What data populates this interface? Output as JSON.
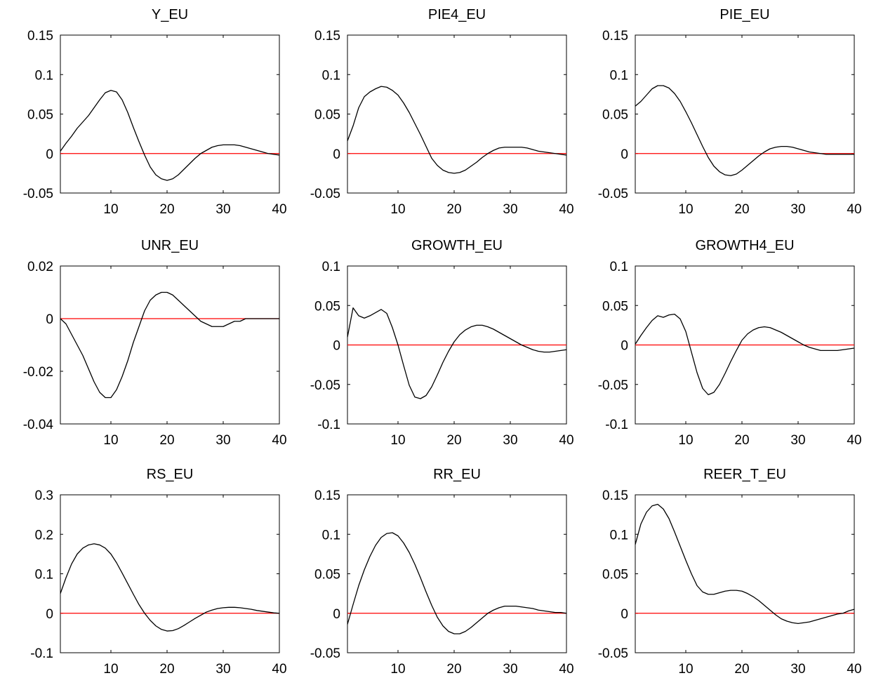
{
  "chart_data": [
    {
      "type": "line",
      "title": "Y_EU",
      "xlim": [
        1,
        40
      ],
      "ylim": [
        -0.05,
        0.15
      ],
      "xticks": [
        10,
        20,
        30,
        40
      ],
      "yticks": [
        -0.05,
        0,
        0.05,
        0.1,
        0.15
      ],
      "ytick_labels": [
        "-0.05",
        "0",
        "0.05",
        "0.1",
        "0.15"
      ],
      "zero_line": true,
      "x": [
        1,
        2,
        3,
        4,
        5,
        6,
        7,
        8,
        9,
        10,
        11,
        12,
        13,
        14,
        15,
        16,
        17,
        18,
        19,
        20,
        21,
        22,
        23,
        24,
        25,
        26,
        27,
        28,
        29,
        30,
        31,
        32,
        33,
        34,
        35,
        36,
        37,
        38,
        39,
        40
      ],
      "series": [
        {
          "values": [
            0.003,
            0.013,
            0.022,
            0.032,
            0.04,
            0.048,
            0.058,
            0.068,
            0.077,
            0.08,
            0.078,
            0.068,
            0.052,
            0.033,
            0.015,
            -0.002,
            -0.017,
            -0.027,
            -0.032,
            -0.034,
            -0.032,
            -0.027,
            -0.02,
            -0.013,
            -0.006,
            0.0,
            0.004,
            0.008,
            0.01,
            0.011,
            0.011,
            0.011,
            0.01,
            0.008,
            0.006,
            0.004,
            0.002,
            0.0,
            -0.001,
            -0.002
          ]
        }
      ]
    },
    {
      "type": "line",
      "title": "PIE4_EU",
      "xlim": [
        1,
        40
      ],
      "ylim": [
        -0.05,
        0.15
      ],
      "xticks": [
        10,
        20,
        30,
        40
      ],
      "yticks": [
        -0.05,
        0,
        0.05,
        0.1,
        0.15
      ],
      "ytick_labels": [
        "-0.05",
        "0",
        "0.05",
        "0.1",
        "0.15"
      ],
      "zero_line": true,
      "x": [
        1,
        2,
        3,
        4,
        5,
        6,
        7,
        8,
        9,
        10,
        11,
        12,
        13,
        14,
        15,
        16,
        17,
        18,
        19,
        20,
        21,
        22,
        23,
        24,
        25,
        26,
        27,
        28,
        29,
        30,
        31,
        32,
        33,
        34,
        35,
        36,
        37,
        38,
        39,
        40
      ],
      "series": [
        {
          "values": [
            0.016,
            0.035,
            0.058,
            0.072,
            0.078,
            0.082,
            0.085,
            0.084,
            0.08,
            0.074,
            0.064,
            0.052,
            0.038,
            0.024,
            0.009,
            -0.006,
            -0.015,
            -0.021,
            -0.024,
            -0.025,
            -0.024,
            -0.021,
            -0.016,
            -0.011,
            -0.005,
            0.0,
            0.004,
            0.007,
            0.008,
            0.008,
            0.008,
            0.008,
            0.007,
            0.005,
            0.003,
            0.002,
            0.001,
            0.0,
            -0.001,
            -0.002
          ]
        }
      ]
    },
    {
      "type": "line",
      "title": "PIE_EU",
      "xlim": [
        1,
        40
      ],
      "ylim": [
        -0.05,
        0.15
      ],
      "xticks": [
        10,
        20,
        30,
        40
      ],
      "yticks": [
        -0.05,
        0,
        0.05,
        0.1,
        0.15
      ],
      "ytick_labels": [
        "-0.05",
        "0",
        "0.05",
        "0.1",
        "0.15"
      ],
      "zero_line": true,
      "x": [
        1,
        2,
        3,
        4,
        5,
        6,
        7,
        8,
        9,
        10,
        11,
        12,
        13,
        14,
        15,
        16,
        17,
        18,
        19,
        20,
        21,
        22,
        23,
        24,
        25,
        26,
        27,
        28,
        29,
        30,
        31,
        32,
        33,
        34,
        35,
        36,
        37,
        38,
        39,
        40
      ],
      "series": [
        {
          "values": [
            0.06,
            0.066,
            0.074,
            0.082,
            0.086,
            0.086,
            0.083,
            0.076,
            0.066,
            0.053,
            0.039,
            0.024,
            0.009,
            -0.005,
            -0.016,
            -0.023,
            -0.027,
            -0.028,
            -0.026,
            -0.021,
            -0.015,
            -0.009,
            -0.003,
            0.002,
            0.006,
            0.008,
            0.009,
            0.009,
            0.008,
            0.006,
            0.004,
            0.002,
            0.001,
            0.0,
            -0.001,
            -0.001,
            -0.001,
            -0.001,
            -0.001,
            -0.001
          ]
        }
      ]
    },
    {
      "type": "line",
      "title": "UNR_EU",
      "xlim": [
        1,
        40
      ],
      "ylim": [
        -0.04,
        0.02
      ],
      "xticks": [
        10,
        20,
        30,
        40
      ],
      "yticks": [
        -0.04,
        -0.02,
        0,
        0.02
      ],
      "ytick_labels": [
        "-0.04",
        "-0.02",
        "0",
        "0.02"
      ],
      "zero_line": true,
      "x": [
        1,
        2,
        3,
        4,
        5,
        6,
        7,
        8,
        9,
        10,
        11,
        12,
        13,
        14,
        15,
        16,
        17,
        18,
        19,
        20,
        21,
        22,
        23,
        24,
        25,
        26,
        27,
        28,
        29,
        30,
        31,
        32,
        33,
        34,
        35,
        36,
        37,
        38,
        39,
        40
      ],
      "series": [
        {
          "values": [
            0.0,
            -0.002,
            -0.006,
            -0.01,
            -0.014,
            -0.019,
            -0.024,
            -0.028,
            -0.03,
            -0.03,
            -0.027,
            -0.022,
            -0.016,
            -0.009,
            -0.003,
            0.003,
            0.007,
            0.009,
            0.01,
            0.01,
            0.009,
            0.007,
            0.005,
            0.003,
            0.001,
            -0.001,
            -0.002,
            -0.003,
            -0.003,
            -0.003,
            -0.002,
            -0.001,
            -0.001,
            0.0,
            0.0,
            0.0,
            0.0,
            0.0,
            0.0,
            0.0
          ]
        }
      ]
    },
    {
      "type": "line",
      "title": "GROWTH_EU",
      "xlim": [
        1,
        40
      ],
      "ylim": [
        -0.1,
        0.1
      ],
      "xticks": [
        10,
        20,
        30,
        40
      ],
      "yticks": [
        -0.1,
        -0.05,
        0,
        0.05,
        0.1
      ],
      "ytick_labels": [
        "-0.1",
        "-0.05",
        "0",
        "0.05",
        "0.1"
      ],
      "zero_line": true,
      "x": [
        1,
        2,
        3,
        4,
        5,
        6,
        7,
        8,
        9,
        10,
        11,
        12,
        13,
        14,
        15,
        16,
        17,
        18,
        19,
        20,
        21,
        22,
        23,
        24,
        25,
        26,
        27,
        28,
        29,
        30,
        31,
        32,
        33,
        34,
        35,
        36,
        37,
        38,
        39,
        40
      ],
      "series": [
        {
          "values": [
            0.01,
            0.047,
            0.037,
            0.034,
            0.037,
            0.041,
            0.045,
            0.04,
            0.022,
            0.0,
            -0.026,
            -0.051,
            -0.066,
            -0.068,
            -0.064,
            -0.053,
            -0.038,
            -0.022,
            -0.008,
            0.004,
            0.013,
            0.019,
            0.023,
            0.025,
            0.025,
            0.023,
            0.02,
            0.016,
            0.012,
            0.008,
            0.004,
            0.0,
            -0.003,
            -0.006,
            -0.008,
            -0.009,
            -0.009,
            -0.008,
            -0.007,
            -0.006
          ]
        }
      ]
    },
    {
      "type": "line",
      "title": "GROWTH4_EU",
      "xlim": [
        1,
        40
      ],
      "ylim": [
        -0.1,
        0.1
      ],
      "xticks": [
        10,
        20,
        30,
        40
      ],
      "yticks": [
        -0.1,
        -0.05,
        0,
        0.05,
        0.1
      ],
      "ytick_labels": [
        "-0.1",
        "-0.05",
        "0",
        "0.05",
        "0.1"
      ],
      "zero_line": true,
      "x": [
        1,
        2,
        3,
        4,
        5,
        6,
        7,
        8,
        9,
        10,
        11,
        12,
        13,
        14,
        15,
        16,
        17,
        18,
        19,
        20,
        21,
        22,
        23,
        24,
        25,
        26,
        27,
        28,
        29,
        30,
        31,
        32,
        33,
        34,
        35,
        36,
        37,
        38,
        39,
        40
      ],
      "series": [
        {
          "values": [
            0.001,
            0.012,
            0.022,
            0.031,
            0.037,
            0.035,
            0.038,
            0.039,
            0.033,
            0.017,
            -0.009,
            -0.035,
            -0.055,
            -0.063,
            -0.06,
            -0.05,
            -0.036,
            -0.021,
            -0.007,
            0.006,
            0.014,
            0.019,
            0.022,
            0.023,
            0.022,
            0.019,
            0.016,
            0.012,
            0.008,
            0.004,
            0.0,
            -0.003,
            -0.005,
            -0.007,
            -0.007,
            -0.007,
            -0.007,
            -0.006,
            -0.005,
            -0.004
          ]
        }
      ]
    },
    {
      "type": "line",
      "title": "RS_EU",
      "xlim": [
        1,
        40
      ],
      "ylim": [
        -0.1,
        0.3
      ],
      "xticks": [
        10,
        20,
        30,
        40
      ],
      "yticks": [
        -0.1,
        0,
        0.1,
        0.2,
        0.3
      ],
      "ytick_labels": [
        "-0.1",
        "0",
        "0.1",
        "0.2",
        "0.3"
      ],
      "zero_line": true,
      "x": [
        1,
        2,
        3,
        4,
        5,
        6,
        7,
        8,
        9,
        10,
        11,
        12,
        13,
        14,
        15,
        16,
        17,
        18,
        19,
        20,
        21,
        22,
        23,
        24,
        25,
        26,
        27,
        28,
        29,
        30,
        31,
        32,
        33,
        34,
        35,
        36,
        37,
        38,
        39,
        40
      ],
      "series": [
        {
          "values": [
            0.05,
            0.09,
            0.125,
            0.15,
            0.165,
            0.173,
            0.176,
            0.173,
            0.165,
            0.15,
            0.128,
            0.102,
            0.075,
            0.048,
            0.022,
            0.0,
            -0.018,
            -0.032,
            -0.041,
            -0.045,
            -0.044,
            -0.039,
            -0.031,
            -0.022,
            -0.013,
            -0.005,
            0.003,
            0.008,
            0.012,
            0.014,
            0.015,
            0.015,
            0.014,
            0.012,
            0.01,
            0.007,
            0.005,
            0.003,
            0.001,
            0.0
          ]
        }
      ]
    },
    {
      "type": "line",
      "title": "RR_EU",
      "xlim": [
        1,
        40
      ],
      "ylim": [
        -0.05,
        0.15
      ],
      "xticks": [
        10,
        20,
        30,
        40
      ],
      "yticks": [
        -0.05,
        0,
        0.05,
        0.1,
        0.15
      ],
      "ytick_labels": [
        "-0.05",
        "0",
        "0.05",
        "0.1",
        "0.15"
      ],
      "zero_line": true,
      "x": [
        1,
        2,
        3,
        4,
        5,
        6,
        7,
        8,
        9,
        10,
        11,
        12,
        13,
        14,
        15,
        16,
        17,
        18,
        19,
        20,
        21,
        22,
        23,
        24,
        25,
        26,
        27,
        28,
        29,
        30,
        31,
        32,
        33,
        34,
        35,
        36,
        37,
        38,
        39,
        40
      ],
      "series": [
        {
          "values": [
            -0.014,
            0.011,
            0.035,
            0.055,
            0.072,
            0.086,
            0.096,
            0.101,
            0.102,
            0.098,
            0.089,
            0.077,
            0.062,
            0.045,
            0.027,
            0.01,
            -0.005,
            -0.016,
            -0.023,
            -0.026,
            -0.026,
            -0.023,
            -0.018,
            -0.012,
            -0.006,
            0.0,
            0.004,
            0.007,
            0.009,
            0.009,
            0.009,
            0.008,
            0.007,
            0.006,
            0.004,
            0.003,
            0.002,
            0.001,
            0.001,
            0.0
          ]
        }
      ]
    },
    {
      "type": "line",
      "title": "REER_T_EU",
      "xlim": [
        1,
        40
      ],
      "ylim": [
        -0.05,
        0.15
      ],
      "xticks": [
        10,
        20,
        30,
        40
      ],
      "yticks": [
        -0.05,
        0,
        0.05,
        0.1,
        0.15
      ],
      "ytick_labels": [
        "-0.05",
        "0",
        "0.05",
        "0.1",
        "0.15"
      ],
      "zero_line": true,
      "x": [
        1,
        2,
        3,
        4,
        5,
        6,
        7,
        8,
        9,
        10,
        11,
        12,
        13,
        14,
        15,
        16,
        17,
        18,
        19,
        20,
        21,
        22,
        23,
        24,
        25,
        26,
        27,
        28,
        29,
        30,
        31,
        32,
        33,
        34,
        35,
        36,
        37,
        38,
        39,
        40
      ],
      "series": [
        {
          "values": [
            0.087,
            0.113,
            0.128,
            0.136,
            0.138,
            0.132,
            0.12,
            0.103,
            0.085,
            0.067,
            0.05,
            0.035,
            0.027,
            0.024,
            0.024,
            0.026,
            0.028,
            0.029,
            0.029,
            0.028,
            0.025,
            0.021,
            0.016,
            0.01,
            0.004,
            -0.002,
            -0.007,
            -0.01,
            -0.012,
            -0.013,
            -0.012,
            -0.011,
            -0.009,
            -0.007,
            -0.005,
            -0.003,
            -0.001,
            0.0,
            0.003,
            0.005
          ]
        }
      ]
    }
  ]
}
